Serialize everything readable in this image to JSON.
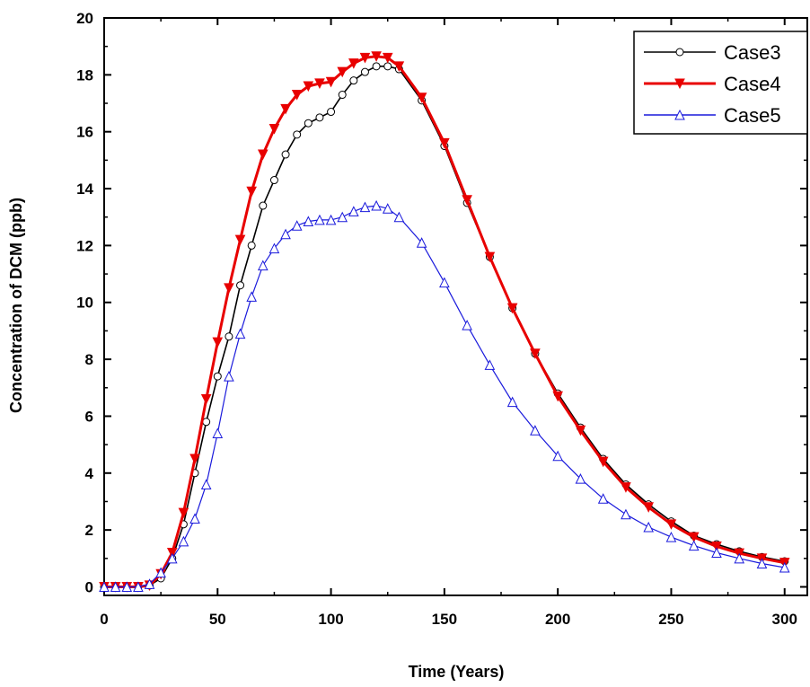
{
  "chart_data": {
    "type": "line",
    "xlabel": "Time (Years)",
    "ylabel": "Concentration of DCM (ppb)",
    "xlim": [
      0,
      310
    ],
    "ylim": [
      -0.3,
      20
    ],
    "xticks": [
      "0",
      "50",
      "100",
      "150",
      "200",
      "250",
      "300"
    ],
    "yticks": [
      "0",
      "2",
      "4",
      "6",
      "8",
      "10",
      "12",
      "14",
      "16",
      "18",
      "20"
    ],
    "legend_position": "top-right",
    "series": [
      {
        "name": "Case3",
        "color": "#000000",
        "marker": "circle",
        "x": [
          0,
          5,
          10,
          15,
          20,
          25,
          30,
          35,
          40,
          45,
          50,
          55,
          60,
          65,
          70,
          75,
          80,
          85,
          90,
          95,
          100,
          105,
          110,
          115,
          120,
          125,
          130,
          140,
          150,
          160,
          170,
          180,
          190,
          200,
          210,
          220,
          230,
          240,
          250,
          260,
          270,
          280,
          290,
          300
        ],
        "y": [
          0,
          0,
          0,
          0,
          0.05,
          0.3,
          1.0,
          2.2,
          4.0,
          5.8,
          7.4,
          8.8,
          10.6,
          12.0,
          13.4,
          14.3,
          15.2,
          15.9,
          16.3,
          16.5,
          16.7,
          17.3,
          17.8,
          18.1,
          18.3,
          18.3,
          18.2,
          17.1,
          15.5,
          13.5,
          11.6,
          9.8,
          8.2,
          6.8,
          5.6,
          4.5,
          3.6,
          2.9,
          2.3,
          1.8,
          1.5,
          1.25,
          1.05,
          0.9
        ]
      },
      {
        "name": "Case4",
        "color": "#e80000",
        "marker": "triangle-down",
        "x": [
          0,
          5,
          10,
          15,
          20,
          25,
          30,
          35,
          40,
          45,
          50,
          55,
          60,
          65,
          70,
          75,
          80,
          85,
          90,
          95,
          100,
          105,
          110,
          115,
          120,
          125,
          130,
          140,
          150,
          160,
          170,
          180,
          190,
          200,
          210,
          220,
          230,
          240,
          250,
          260,
          270,
          280,
          290,
          300
        ],
        "y": [
          0,
          0,
          0,
          0,
          0.05,
          0.45,
          1.2,
          2.6,
          4.5,
          6.6,
          8.6,
          10.5,
          12.2,
          13.9,
          15.2,
          16.1,
          16.8,
          17.3,
          17.6,
          17.7,
          17.75,
          18.1,
          18.4,
          18.6,
          18.65,
          18.6,
          18.3,
          17.2,
          15.6,
          13.6,
          11.6,
          9.8,
          8.2,
          6.7,
          5.5,
          4.4,
          3.5,
          2.8,
          2.2,
          1.75,
          1.42,
          1.18,
          1.0,
          0.85
        ]
      },
      {
        "name": "Case5",
        "color": "#1a1adc",
        "marker": "triangle-up",
        "x": [
          0,
          5,
          10,
          15,
          20,
          25,
          30,
          35,
          40,
          45,
          50,
          55,
          60,
          65,
          70,
          75,
          80,
          85,
          90,
          95,
          100,
          105,
          110,
          115,
          120,
          125,
          130,
          140,
          150,
          160,
          170,
          180,
          190,
          200,
          210,
          220,
          230,
          240,
          250,
          260,
          270,
          280,
          290,
          300
        ],
        "y": [
          0,
          0,
          0,
          0,
          0.1,
          0.5,
          1.0,
          1.6,
          2.4,
          3.6,
          5.4,
          7.4,
          8.9,
          10.2,
          11.3,
          11.9,
          12.4,
          12.7,
          12.85,
          12.9,
          12.9,
          13.0,
          13.2,
          13.35,
          13.4,
          13.3,
          13.0,
          12.1,
          10.7,
          9.2,
          7.8,
          6.5,
          5.5,
          4.6,
          3.8,
          3.1,
          2.55,
          2.1,
          1.75,
          1.45,
          1.2,
          1.0,
          0.82,
          0.68
        ]
      }
    ]
  }
}
